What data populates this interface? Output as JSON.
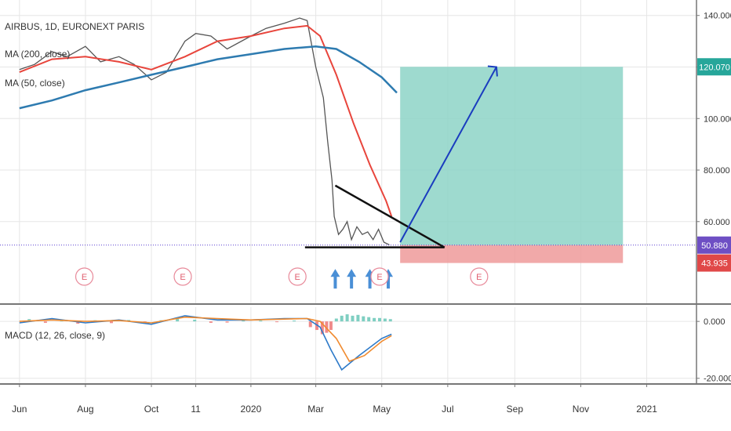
{
  "chart_data": {
    "type": "line",
    "title": "AIRBUS, 1D, EURONEXT PARIS",
    "legend": {
      "ma200": "MA (200, close)",
      "ma50": "MA (50, close)",
      "macd": "MACD (12, 26, close, 9)"
    },
    "price_axis": {
      "ticks": [
        {
          "label": "140.000",
          "value": 140
        },
        {
          "label": "120.000",
          "value": 120
        },
        {
          "label": "100.000",
          "value": 100
        },
        {
          "label": "80.000",
          "value": 80
        },
        {
          "label": "60.000",
          "value": 60
        }
      ],
      "range": [
        28,
        146
      ]
    },
    "macd_axis": {
      "ticks": [
        {
          "label": "0.000",
          "value": 0
        },
        {
          "label": "-20.000",
          "value": -20
        }
      ],
      "range": [
        -22,
        5
      ]
    },
    "x_axis": {
      "ticks": [
        {
          "label": "Jun",
          "date": "2019-06-01"
        },
        {
          "label": "Aug",
          "date": "2019-08-01"
        },
        {
          "label": "Oct",
          "date": "2019-10-01"
        },
        {
          "label": "11",
          "date": "2019-11-11"
        },
        {
          "label": "2020",
          "date": "2020-01-01"
        },
        {
          "label": "Mar",
          "date": "2020-03-01"
        },
        {
          "label": "May",
          "date": "2020-05-01"
        },
        {
          "label": "Jul",
          "date": "2020-07-01"
        },
        {
          "label": "Sep",
          "date": "2020-09-01"
        },
        {
          "label": "Nov",
          "date": "2020-11-01"
        },
        {
          "label": "2021",
          "date": "2021-01-01"
        }
      ]
    },
    "price_badges": {
      "target": {
        "label": "120.070",
        "value": 120.07,
        "color": "#26a69a"
      },
      "current": {
        "label": "50.880",
        "value": 50.88,
        "color": "#6e4fc4"
      },
      "stop": {
        "label": "43.935",
        "value": 43.935,
        "color": "#e04848"
      }
    },
    "series": [
      {
        "key": "close",
        "color": "#555555",
        "points": [
          [
            "2019-06-01",
            119
          ],
          [
            "2019-06-15",
            121
          ],
          [
            "2019-07-01",
            126
          ],
          [
            "2019-07-15",
            124
          ],
          [
            "2019-08-01",
            128
          ],
          [
            "2019-08-15",
            122
          ],
          [
            "2019-09-01",
            124
          ],
          [
            "2019-09-15",
            121
          ],
          [
            "2019-10-01",
            115
          ],
          [
            "2019-10-15",
            118
          ],
          [
            "2019-11-01",
            130
          ],
          [
            "2019-11-11",
            133
          ],
          [
            "2019-11-25",
            132
          ],
          [
            "2019-12-10",
            127
          ],
          [
            "2020-01-01",
            132
          ],
          [
            "2020-01-15",
            135
          ],
          [
            "2020-02-01",
            137
          ],
          [
            "2020-02-15",
            139
          ],
          [
            "2020-02-22",
            138
          ],
          [
            "2020-03-01",
            120
          ],
          [
            "2020-03-08",
            108
          ],
          [
            "2020-03-12",
            91
          ],
          [
            "2020-03-16",
            76
          ],
          [
            "2020-03-18",
            62
          ],
          [
            "2020-03-22",
            55
          ],
          [
            "2020-03-26",
            57
          ],
          [
            "2020-03-30",
            60
          ],
          [
            "2020-04-03",
            53
          ],
          [
            "2020-04-08",
            58
          ],
          [
            "2020-04-13",
            55
          ],
          [
            "2020-04-18",
            56
          ],
          [
            "2020-04-23",
            53
          ],
          [
            "2020-04-28",
            57
          ],
          [
            "2020-05-03",
            52
          ],
          [
            "2020-05-08",
            51
          ]
        ]
      },
      {
        "key": "ma50",
        "color": "#e8453c",
        "points": [
          [
            "2019-06-01",
            118
          ],
          [
            "2019-07-01",
            123
          ],
          [
            "2019-08-01",
            124
          ],
          [
            "2019-09-01",
            122
          ],
          [
            "2019-10-01",
            119
          ],
          [
            "2019-11-01",
            124
          ],
          [
            "2019-12-01",
            130
          ],
          [
            "2020-01-01",
            132
          ],
          [
            "2020-02-01",
            135
          ],
          [
            "2020-02-22",
            136
          ],
          [
            "2020-03-05",
            132
          ],
          [
            "2020-03-20",
            117
          ],
          [
            "2020-04-05",
            98
          ],
          [
            "2020-04-20",
            82
          ],
          [
            "2020-05-05",
            68
          ],
          [
            "2020-05-10",
            62
          ]
        ]
      },
      {
        "key": "ma200",
        "color": "#2e7bb0",
        "points": [
          [
            "2019-06-01",
            104
          ],
          [
            "2019-07-01",
            107
          ],
          [
            "2019-08-01",
            111
          ],
          [
            "2019-09-01",
            114
          ],
          [
            "2019-10-01",
            117
          ],
          [
            "2019-11-01",
            120
          ],
          [
            "2019-12-01",
            123
          ],
          [
            "2020-01-01",
            125
          ],
          [
            "2020-02-01",
            127
          ],
          [
            "2020-03-01",
            128
          ],
          [
            "2020-03-20",
            127
          ],
          [
            "2020-04-10",
            122
          ],
          [
            "2020-05-01",
            116
          ],
          [
            "2020-05-15",
            110
          ]
        ]
      },
      {
        "key": "macd_line",
        "color": "#2d7ac9",
        "points": [
          [
            "2019-06-01",
            -0.5
          ],
          [
            "2019-07-01",
            1
          ],
          [
            "2019-08-01",
            -0.5
          ],
          [
            "2019-09-01",
            0.5
          ],
          [
            "2019-10-01",
            -1
          ],
          [
            "2019-11-01",
            2
          ],
          [
            "2019-12-01",
            0.5
          ],
          [
            "2020-01-01",
            0.5
          ],
          [
            "2020-02-01",
            1
          ],
          [
            "2020-02-22",
            1
          ],
          [
            "2020-03-05",
            -2
          ],
          [
            "2020-03-15",
            -10
          ],
          [
            "2020-03-25",
            -17
          ],
          [
            "2020-04-10",
            -12
          ],
          [
            "2020-05-01",
            -6
          ],
          [
            "2020-05-10",
            -4.5
          ]
        ]
      },
      {
        "key": "macd_signal",
        "color": "#f08a2e",
        "points": [
          [
            "2019-06-01",
            0
          ],
          [
            "2019-07-01",
            0.5
          ],
          [
            "2019-08-01",
            0
          ],
          [
            "2019-09-01",
            0.3
          ],
          [
            "2019-10-01",
            -0.5
          ],
          [
            "2019-11-01",
            1.5
          ],
          [
            "2019-12-01",
            1
          ],
          [
            "2020-01-01",
            0.5
          ],
          [
            "2020-02-01",
            0.8
          ],
          [
            "2020-02-22",
            1
          ],
          [
            "2020-03-05",
            0
          ],
          [
            "2020-03-20",
            -6
          ],
          [
            "2020-04-01",
            -14
          ],
          [
            "2020-04-15",
            -12
          ],
          [
            "2020-05-01",
            -7
          ],
          [
            "2020-05-10",
            -5
          ]
        ]
      }
    ],
    "earnings_markers": [
      {
        "label": "E",
        "date": "2019-07-31"
      },
      {
        "label": "E",
        "date": "2019-10-30"
      },
      {
        "label": "E",
        "date": "2020-02-13"
      },
      {
        "label": "E",
        "date": "2020-04-29"
      },
      {
        "label": "E",
        "date": "2020-07-30"
      }
    ],
    "annotations": {
      "support_line": {
        "from": [
          "2020-02-20",
          50
        ],
        "to": [
          "2020-06-28",
          50
        ],
        "color": "#111111"
      },
      "resistance_line": {
        "from": [
          "2020-03-19",
          74
        ],
        "to": [
          "2020-06-28",
          50
        ],
        "color": "#111111"
      },
      "target_zone": {
        "from_date": "2020-05-18",
        "to_date": "2020-12-10",
        "low": 50.88,
        "high": 120.07,
        "color": "#8dd3c7"
      },
      "stop_zone": {
        "from_date": "2020-05-18",
        "to_date": "2020-12-10",
        "low": 43.935,
        "high": 50.88,
        "color": "#ef9a9a"
      },
      "projection_arrow": {
        "from": [
          "2020-05-18",
          52
        ],
        "to": [
          "2020-08-15",
          120
        ],
        "color": "#1a3cbf"
      },
      "bottom_arrows": {
        "dates": [
          "2020-03-19",
          "2020-04-03",
          "2020-04-20",
          "2020-05-07"
        ],
        "value": 41,
        "color": "#4a8fd6"
      },
      "current_price_line": {
        "value": 50.88,
        "color": "#5a3fd1"
      }
    },
    "macd_histogram": [
      [
        "2019-06-10",
        0.8
      ],
      [
        "2019-06-25",
        -0.5
      ],
      [
        "2019-07-10",
        0.6
      ],
      [
        "2019-07-25",
        -0.8
      ],
      [
        "2019-08-10",
        0.4
      ],
      [
        "2019-08-25",
        -0.6
      ],
      [
        "2019-09-10",
        0.5
      ],
      [
        "2019-09-25",
        -0.7
      ],
      [
        "2019-10-10",
        0.4
      ],
      [
        "2019-10-25",
        0.9
      ],
      [
        "2019-11-10",
        0.6
      ],
      [
        "2019-11-25",
        -0.5
      ],
      [
        "2019-12-10",
        -0.4
      ],
      [
        "2019-12-25",
        0.3
      ],
      [
        "2020-01-10",
        0.3
      ],
      [
        "2020-01-25",
        -0.2
      ],
      [
        "2020-02-10",
        0.3
      ],
      [
        "2020-02-25",
        -2
      ],
      [
        "2020-03-02",
        -3
      ],
      [
        "2020-03-07",
        -4.5
      ],
      [
        "2020-03-11",
        -4
      ],
      [
        "2020-03-15",
        -3
      ],
      [
        "2020-03-20",
        1
      ],
      [
        "2020-03-25",
        2
      ],
      [
        "2020-03-30",
        2.5
      ],
      [
        "2020-04-04",
        2
      ],
      [
        "2020-04-09",
        2.3
      ],
      [
        "2020-04-14",
        1.8
      ],
      [
        "2020-04-19",
        1.5
      ],
      [
        "2020-04-24",
        1.2
      ],
      [
        "2020-04-29",
        1.2
      ],
      [
        "2020-05-04",
        1
      ],
      [
        "2020-05-09",
        0.8
      ]
    ]
  }
}
